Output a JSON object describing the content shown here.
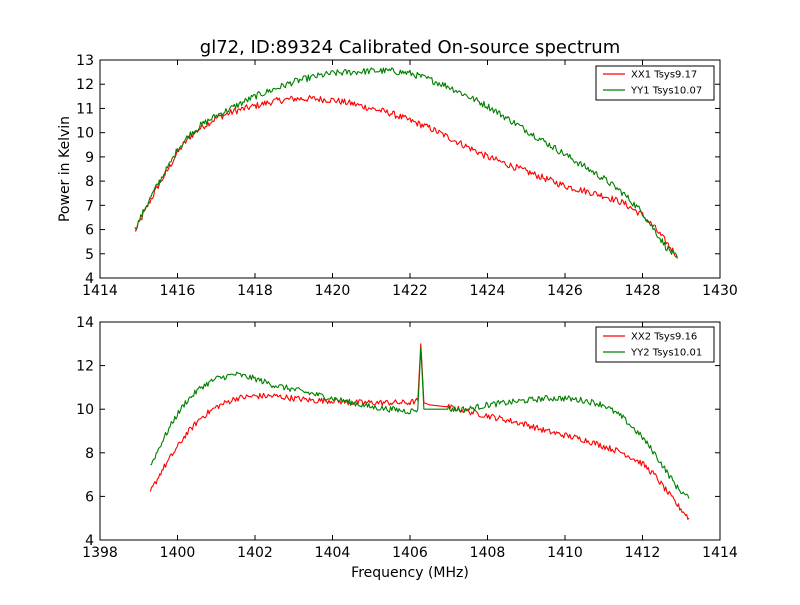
{
  "chart_data": [
    {
      "type": "line",
      "title": "gl72, ID:89324 Calibrated On-source spectrum",
      "xlabel": "",
      "ylabel": "Power in Kelvin",
      "xlim": [
        1414,
        1430
      ],
      "ylim": [
        4,
        13
      ],
      "xticks": [
        1414,
        1416,
        1418,
        1420,
        1422,
        1424,
        1426,
        1428,
        1430
      ],
      "yticks": [
        4,
        5,
        6,
        7,
        8,
        9,
        10,
        11,
        12,
        13
      ],
      "legend_position": "top-right",
      "grid": false,
      "series": [
        {
          "name": "XX1 Tsys9.17",
          "color": "#ff0000",
          "x": [
            1414.9,
            1415.2,
            1415.5,
            1415.8,
            1416.0,
            1416.3,
            1416.6,
            1417.0,
            1417.5,
            1418.0,
            1418.5,
            1419.0,
            1419.5,
            1420.0,
            1420.5,
            1421.0,
            1421.5,
            1422.0,
            1422.5,
            1423.0,
            1423.5,
            1424.0,
            1424.5,
            1425.0,
            1425.5,
            1426.0,
            1426.5,
            1427.0,
            1427.5,
            1428.0,
            1428.3,
            1428.6,
            1428.9
          ],
          "y": [
            5.9,
            6.9,
            7.8,
            8.6,
            9.2,
            9.8,
            10.2,
            10.6,
            10.9,
            11.1,
            11.3,
            11.4,
            11.4,
            11.35,
            11.2,
            11.0,
            10.8,
            10.5,
            10.2,
            9.8,
            9.4,
            9.0,
            8.7,
            8.4,
            8.1,
            7.8,
            7.6,
            7.4,
            7.1,
            6.6,
            6.1,
            5.5,
            4.9
          ]
        },
        {
          "name": "YY1 Tsys10.07",
          "color": "#008000",
          "x": [
            1414.9,
            1415.2,
            1415.5,
            1415.8,
            1416.0,
            1416.3,
            1416.6,
            1417.0,
            1417.5,
            1418.0,
            1418.5,
            1419.0,
            1419.5,
            1420.0,
            1420.5,
            1421.0,
            1421.5,
            1422.0,
            1422.5,
            1423.0,
            1423.5,
            1424.0,
            1424.5,
            1425.0,
            1425.5,
            1426.0,
            1426.5,
            1427.0,
            1427.5,
            1428.0,
            1428.3,
            1428.6,
            1428.9
          ],
          "y": [
            6.0,
            7.0,
            7.9,
            8.7,
            9.3,
            9.9,
            10.3,
            10.7,
            11.1,
            11.5,
            11.8,
            12.1,
            12.3,
            12.45,
            12.5,
            12.55,
            12.55,
            12.45,
            12.2,
            11.9,
            11.5,
            11.1,
            10.6,
            10.1,
            9.6,
            9.1,
            8.6,
            8.1,
            7.5,
            6.7,
            6.0,
            5.3,
            4.8
          ]
        }
      ]
    },
    {
      "type": "line",
      "title": "",
      "xlabel": "Frequency (MHz)",
      "ylabel": "",
      "xlim": [
        1398,
        1414
      ],
      "ylim": [
        4,
        14
      ],
      "xticks": [
        1398,
        1400,
        1402,
        1404,
        1406,
        1408,
        1410,
        1412,
        1414
      ],
      "yticks": [
        4,
        6,
        8,
        10,
        12,
        14
      ],
      "legend_position": "top-right",
      "grid": false,
      "series": [
        {
          "name": "XX2 Tsys9.16",
          "color": "#ff0000",
          "x": [
            1399.3,
            1399.6,
            1399.9,
            1400.2,
            1400.6,
            1401.0,
            1401.5,
            1402.0,
            1402.5,
            1403.0,
            1403.5,
            1404.0,
            1404.5,
            1405.0,
            1405.5,
            1406.0,
            1406.2,
            1406.28,
            1406.36,
            1406.5,
            1407.0,
            1407.5,
            1408.0,
            1408.5,
            1409.0,
            1409.5,
            1410.0,
            1410.5,
            1411.0,
            1411.5,
            1412.0,
            1412.3,
            1412.6,
            1412.9,
            1413.2
          ],
          "y": [
            6.2,
            7.2,
            8.0,
            8.8,
            9.6,
            10.1,
            10.5,
            10.6,
            10.6,
            10.5,
            10.4,
            10.4,
            10.3,
            10.3,
            10.3,
            10.3,
            10.4,
            13.0,
            10.3,
            10.2,
            10.1,
            9.9,
            9.7,
            9.5,
            9.3,
            9.0,
            8.8,
            8.6,
            8.3,
            8.0,
            7.5,
            7.0,
            6.3,
            5.6,
            5.0
          ]
        },
        {
          "name": "YY2 Tsys10.01",
          "color": "#008000",
          "x": [
            1399.3,
            1399.6,
            1399.9,
            1400.2,
            1400.6,
            1401.0,
            1401.5,
            1402.0,
            1402.5,
            1403.0,
            1403.5,
            1404.0,
            1404.5,
            1405.0,
            1405.5,
            1406.0,
            1406.2,
            1406.28,
            1406.36,
            1406.5,
            1407.0,
            1407.5,
            1408.0,
            1408.5,
            1409.0,
            1409.5,
            1410.0,
            1410.5,
            1411.0,
            1411.5,
            1412.0,
            1412.3,
            1412.6,
            1412.9,
            1413.2
          ],
          "y": [
            7.4,
            8.5,
            9.5,
            10.3,
            11.0,
            11.4,
            11.6,
            11.4,
            11.1,
            10.9,
            10.7,
            10.5,
            10.3,
            10.1,
            10.0,
            9.9,
            10.0,
            12.8,
            10.0,
            10.0,
            10.0,
            10.0,
            10.2,
            10.3,
            10.4,
            10.5,
            10.5,
            10.4,
            10.2,
            9.6,
            8.7,
            8.0,
            7.2,
            6.4,
            5.9
          ]
        }
      ]
    }
  ]
}
